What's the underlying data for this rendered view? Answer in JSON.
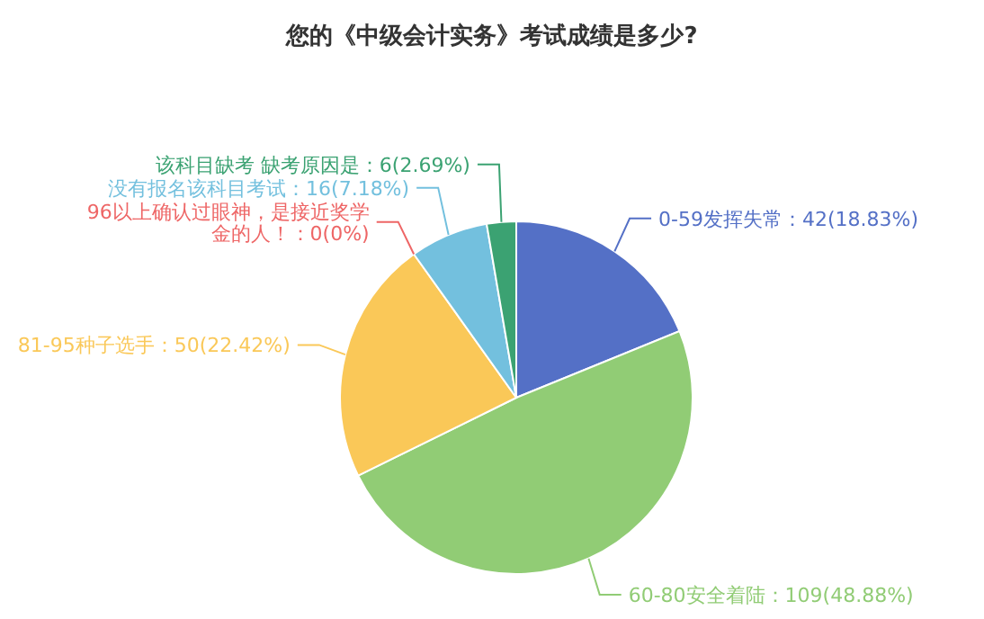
{
  "chart_data": {
    "type": "pie",
    "title": "您的《中级会计实务》考试成绩是多少?",
    "categories": [
      "0-59发挥失常",
      "60-80安全着陆",
      "81-95种子选手",
      "96以上确认过眼神，是接近奖学金的人！",
      "没有报名该科目考试",
      "该科目缺考 缺考原因是"
    ],
    "values": [
      42,
      109,
      50,
      0,
      16,
      6
    ],
    "value_labels": [
      "：42(18.83%)",
      "：109(48.88%)",
      "：50(22.42%)",
      "：0(0%)",
      "：16(7.18%)",
      "：6(2.69%)"
    ],
    "colors": [
      "#5470c6",
      "#91cc75",
      "#fac858",
      "#ee6666",
      "#73c0de",
      "#3ba272"
    ]
  }
}
